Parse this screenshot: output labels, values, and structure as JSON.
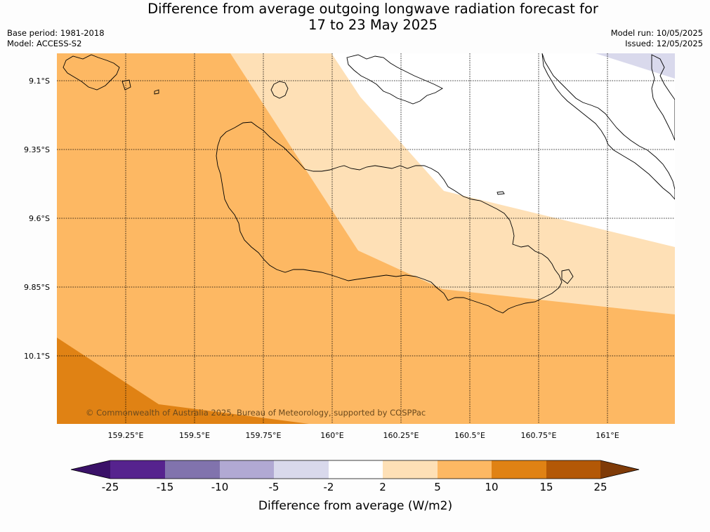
{
  "title_line1": "Difference from average outgoing longwave radiation forecast for",
  "title_line2": "17 to 23 May 2025",
  "base_period": "Base period: 1981-2018",
  "model": "Model: ACCESS-S2",
  "model_run": "Model run: 10/05/2025",
  "issued": "Issued: 12/05/2025",
  "copyright": "© Commonwealth of Australia 2025, Bureau of Meteorology, supported by COSPPac",
  "lat_labels": [
    "9.1°S",
    "9.35°S",
    "9.6°S",
    "9.85°S",
    "10.1°S"
  ],
  "lon_labels": [
    "159.25°E",
    "159.5°E",
    "159.75°E",
    "160°E",
    "160.25°E",
    "160.5°E",
    "160.75°E",
    "161°E"
  ],
  "colorbar": {
    "title": "Difference from average (W/m2)",
    "ticks": [
      "-25",
      "-15",
      "-10",
      "-5",
      "-2",
      "2",
      "5",
      "10",
      "15",
      "25"
    ],
    "colors": [
      "#3a1168",
      "#56238e",
      "#8173ad",
      "#b1a9d3",
      "#d9d9ec",
      "#ffffff",
      "#fee0b6",
      "#fdb863",
      "#e08214",
      "#b35806",
      "#7f3b08"
    ]
  }
}
